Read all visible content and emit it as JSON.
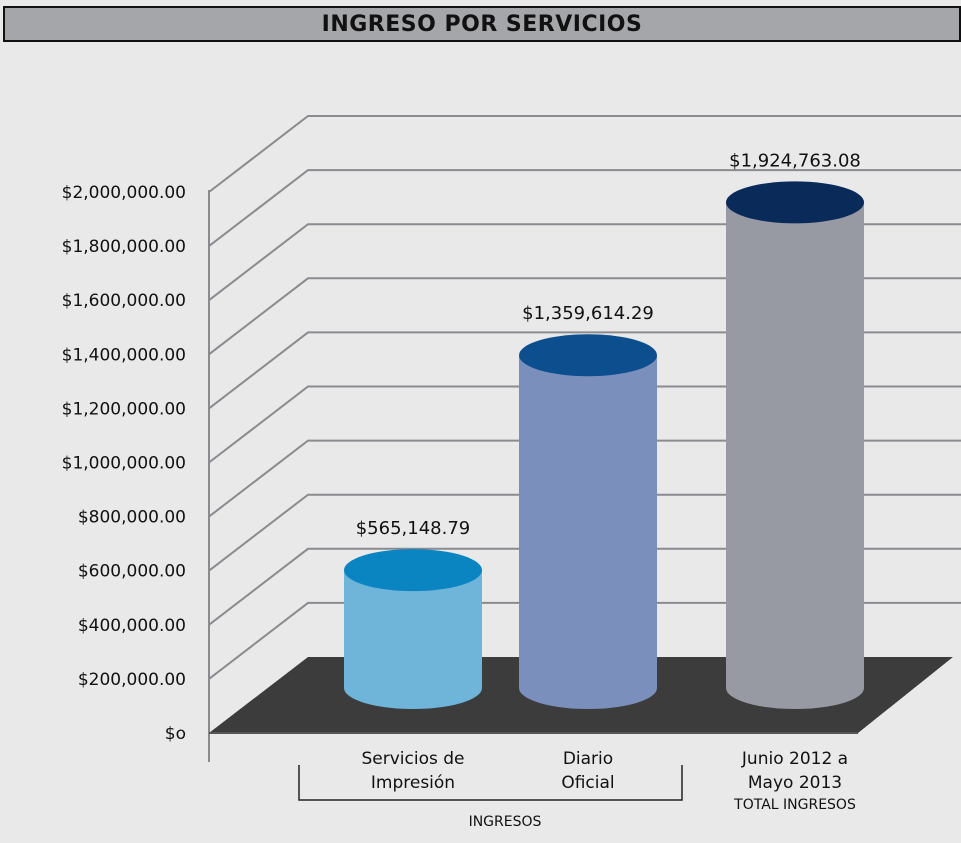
{
  "chart_data": {
    "type": "bar",
    "title": "INGRESO POR SERVICIOS",
    "categories": [
      [
        "Servicios de",
        "Impresión"
      ],
      [
        "Diario",
        "Oficial"
      ],
      [
        "Junio 2012 a",
        "Mayo 2013"
      ]
    ],
    "values": [
      565148.79,
      1359614.29,
      1924763.08
    ],
    "value_labels": [
      "$565,148.79",
      "$1,359,614.29",
      "$1,924,763.08"
    ],
    "y_ticks": [
      {
        "v": 0,
        "label": "$o"
      },
      {
        "v": 200000,
        "label": "$200,000.00"
      },
      {
        "v": 400000,
        "label": "$400,000.00"
      },
      {
        "v": 600000,
        "label": "$600,000.00"
      },
      {
        "v": 800000,
        "label": "$800,000.00"
      },
      {
        "v": 1000000,
        "label": "$1,000,000.00"
      },
      {
        "v": 1200000,
        "label": "$1,200,000.00"
      },
      {
        "v": 1400000,
        "label": "$1,400,000.00"
      },
      {
        "v": 1600000,
        "label": "$1,600,000.00"
      },
      {
        "v": 1800000,
        "label": "$1,800,000.00"
      },
      {
        "v": 2000000,
        "label": "$2,000,000.00"
      }
    ],
    "ylim": [
      0,
      2000000
    ],
    "group_label": "INGRESOS",
    "total_label": "TOTAL INGRESOS",
    "grid": true,
    "colors": {
      "bars": [
        "#6fb4d9",
        "#7b8fbd",
        "#979aa3"
      ],
      "caps": [
        "#0b84c2",
        "#0d4f8e",
        "#0a2a5a"
      ],
      "floor": "#3b3c3b",
      "grid": "#8a8b8e",
      "title_bg": "#a5a6aa",
      "background": "#e9e9ea"
    }
  }
}
